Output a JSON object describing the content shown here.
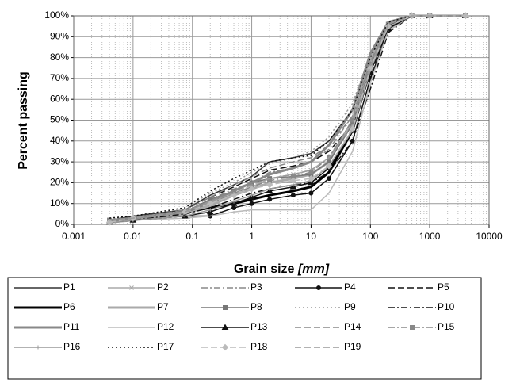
{
  "chart_data": {
    "type": "line",
    "ylabel": "Percent passing",
    "xlabel": [
      "Grain size",
      "[mm]"
    ],
    "log_x": true,
    "grid": true,
    "minor_grid": true,
    "xlim": [
      0.001,
      10000
    ],
    "xticks": [
      0.001,
      0.01,
      0.1,
      1,
      10,
      100,
      1000,
      10000
    ],
    "ylim": [
      0,
      100
    ],
    "yticks": [
      {
        "value": 0,
        "label": "0%"
      },
      {
        "value": 10,
        "label": "10%"
      },
      {
        "value": 20,
        "label": "20%"
      },
      {
        "value": 30,
        "label": "30%"
      },
      {
        "value": 40,
        "label": "40%"
      },
      {
        "value": 50,
        "label": "50%"
      },
      {
        "value": 60,
        "label": "60%"
      },
      {
        "value": 70,
        "label": "70%"
      },
      {
        "value": 80,
        "label": "80%"
      },
      {
        "value": 90,
        "label": "90%"
      },
      {
        "value": 100,
        "label": "100%"
      }
    ],
    "legend": "bottom",
    "x": [
      0.004,
      0.01,
      0.075,
      0.2,
      0.5,
      1,
      2,
      5,
      10,
      20,
      50,
      100,
      200,
      500,
      1000,
      4000
    ],
    "series": [
      {
        "name": "P1",
        "color": "#333333",
        "style": "solid",
        "width": 1.5,
        "values": [
          2,
          4,
          7,
          14,
          19,
          23,
          30,
          32,
          34,
          40,
          55,
          80,
          97,
          100,
          100,
          100
        ]
      },
      {
        "name": "P2",
        "color": "#aaaaaa",
        "style": "solid",
        "width": 1.5,
        "marker": "x",
        "values": [
          1,
          2,
          5,
          10,
          15,
          18,
          22,
          24,
          26,
          32,
          50,
          78,
          96,
          100,
          100,
          100
        ]
      },
      {
        "name": "P3",
        "color": "#888888",
        "style": "dashdot",
        "width": 1.5,
        "values": [
          2,
          3,
          6,
          12,
          17,
          20,
          25,
          27,
          30,
          36,
          52,
          79,
          96,
          100,
          100,
          100
        ]
      },
      {
        "name": "P4",
        "color": "#111111",
        "style": "solid",
        "width": 1.5,
        "marker": "circle",
        "values": [
          1,
          2,
          4,
          4,
          8,
          10,
          12,
          14,
          15,
          22,
          40,
          70,
          93,
          100,
          100,
          100
        ]
      },
      {
        "name": "P5",
        "color": "#111111",
        "style": "dash",
        "width": 1.5,
        "values": [
          2,
          3,
          7,
          13,
          18,
          22,
          26,
          28,
          30,
          35,
          48,
          72,
          94,
          100,
          100,
          100
        ]
      },
      {
        "name": "P6",
        "color": "#000000",
        "style": "solid",
        "width": 3,
        "values": [
          1,
          3,
          6,
          8,
          10,
          12,
          14,
          16,
          18,
          25,
          45,
          75,
          95,
          100,
          100,
          100
        ]
      },
      {
        "name": "P7",
        "color": "#aaaaaa",
        "style": "solid",
        "width": 3,
        "values": [
          1,
          2,
          5,
          9,
          14,
          17,
          20,
          22,
          24,
          30,
          50,
          80,
          97,
          100,
          100,
          100
        ]
      },
      {
        "name": "P8",
        "color": "#777777",
        "style": "solid",
        "width": 1.5,
        "marker": "square",
        "values": [
          2,
          3,
          6,
          12,
          16,
          20,
          22,
          23,
          24,
          30,
          48,
          76,
          95,
          100,
          100,
          100
        ]
      },
      {
        "name": "P9",
        "color": "#999999",
        "style": "dot",
        "width": 1.5,
        "values": [
          3,
          4,
          8,
          15,
          20,
          25,
          29,
          32,
          35,
          42,
          58,
          82,
          97,
          100,
          100,
          100
        ]
      },
      {
        "name": "P10",
        "color": "#111111",
        "style": "dashdot",
        "width": 1.5,
        "values": [
          1,
          2,
          5,
          8,
          12,
          15,
          17,
          19,
          20,
          25,
          40,
          65,
          92,
          100,
          100,
          100
        ]
      },
      {
        "name": "P11",
        "color": "#888888",
        "style": "solid",
        "width": 3,
        "values": [
          2,
          3,
          6,
          11,
          16,
          20,
          24,
          27,
          30,
          38,
          55,
          82,
          97,
          100,
          100,
          100
        ]
      },
      {
        "name": "P12",
        "color": "#bbbbbb",
        "style": "solid",
        "width": 1.5,
        "values": [
          1,
          2,
          3,
          4,
          6,
          7,
          7,
          7,
          7,
          15,
          35,
          68,
          93,
          100,
          100,
          100
        ]
      },
      {
        "name": "P13",
        "color": "#111111",
        "style": "solid",
        "width": 1.5,
        "marker": "triangle",
        "values": [
          1,
          2,
          4,
          6,
          10,
          13,
          16,
          18,
          20,
          27,
          45,
          73,
          94,
          100,
          100,
          100
        ]
      },
      {
        "name": "P14",
        "color": "#888888",
        "style": "dash",
        "width": 1.5,
        "values": [
          2,
          3,
          7,
          13,
          19,
          23,
          27,
          30,
          32,
          38,
          52,
          78,
          96,
          100,
          100,
          100
        ]
      },
      {
        "name": "P15",
        "color": "#888888",
        "style": "dashdot",
        "width": 1.5,
        "marker": "square",
        "values": [
          2,
          3,
          6,
          10,
          15,
          18,
          21,
          23,
          25,
          32,
          50,
          77,
          96,
          100,
          100,
          100
        ]
      },
      {
        "name": "P16",
        "color": "#999999",
        "style": "solid",
        "width": 1.5,
        "marker": "plus",
        "values": [
          1,
          2,
          4,
          7,
          11,
          14,
          17,
          19,
          21,
          28,
          45,
          74,
          95,
          100,
          100,
          100
        ]
      },
      {
        "name": "P17",
        "color": "#111111",
        "style": "dot",
        "width": 1.5,
        "values": [
          3,
          4,
          8,
          16,
          22,
          26,
          30,
          32,
          33,
          40,
          55,
          80,
          97,
          100,
          100,
          100
        ]
      },
      {
        "name": "P18",
        "color": "#bbbbbb",
        "style": "dash",
        "width": 1.5,
        "marker": "diamond",
        "values": [
          1,
          3,
          6,
          10,
          14,
          17,
          19,
          21,
          22,
          28,
          46,
          75,
          95,
          100,
          100,
          100
        ]
      },
      {
        "name": "P19",
        "color": "#999999",
        "style": "dash",
        "width": 1.5,
        "values": [
          2,
          3,
          6,
          11,
          15,
          19,
          22,
          24,
          26,
          32,
          48,
          76,
          96,
          100,
          100,
          100
        ]
      }
    ]
  }
}
